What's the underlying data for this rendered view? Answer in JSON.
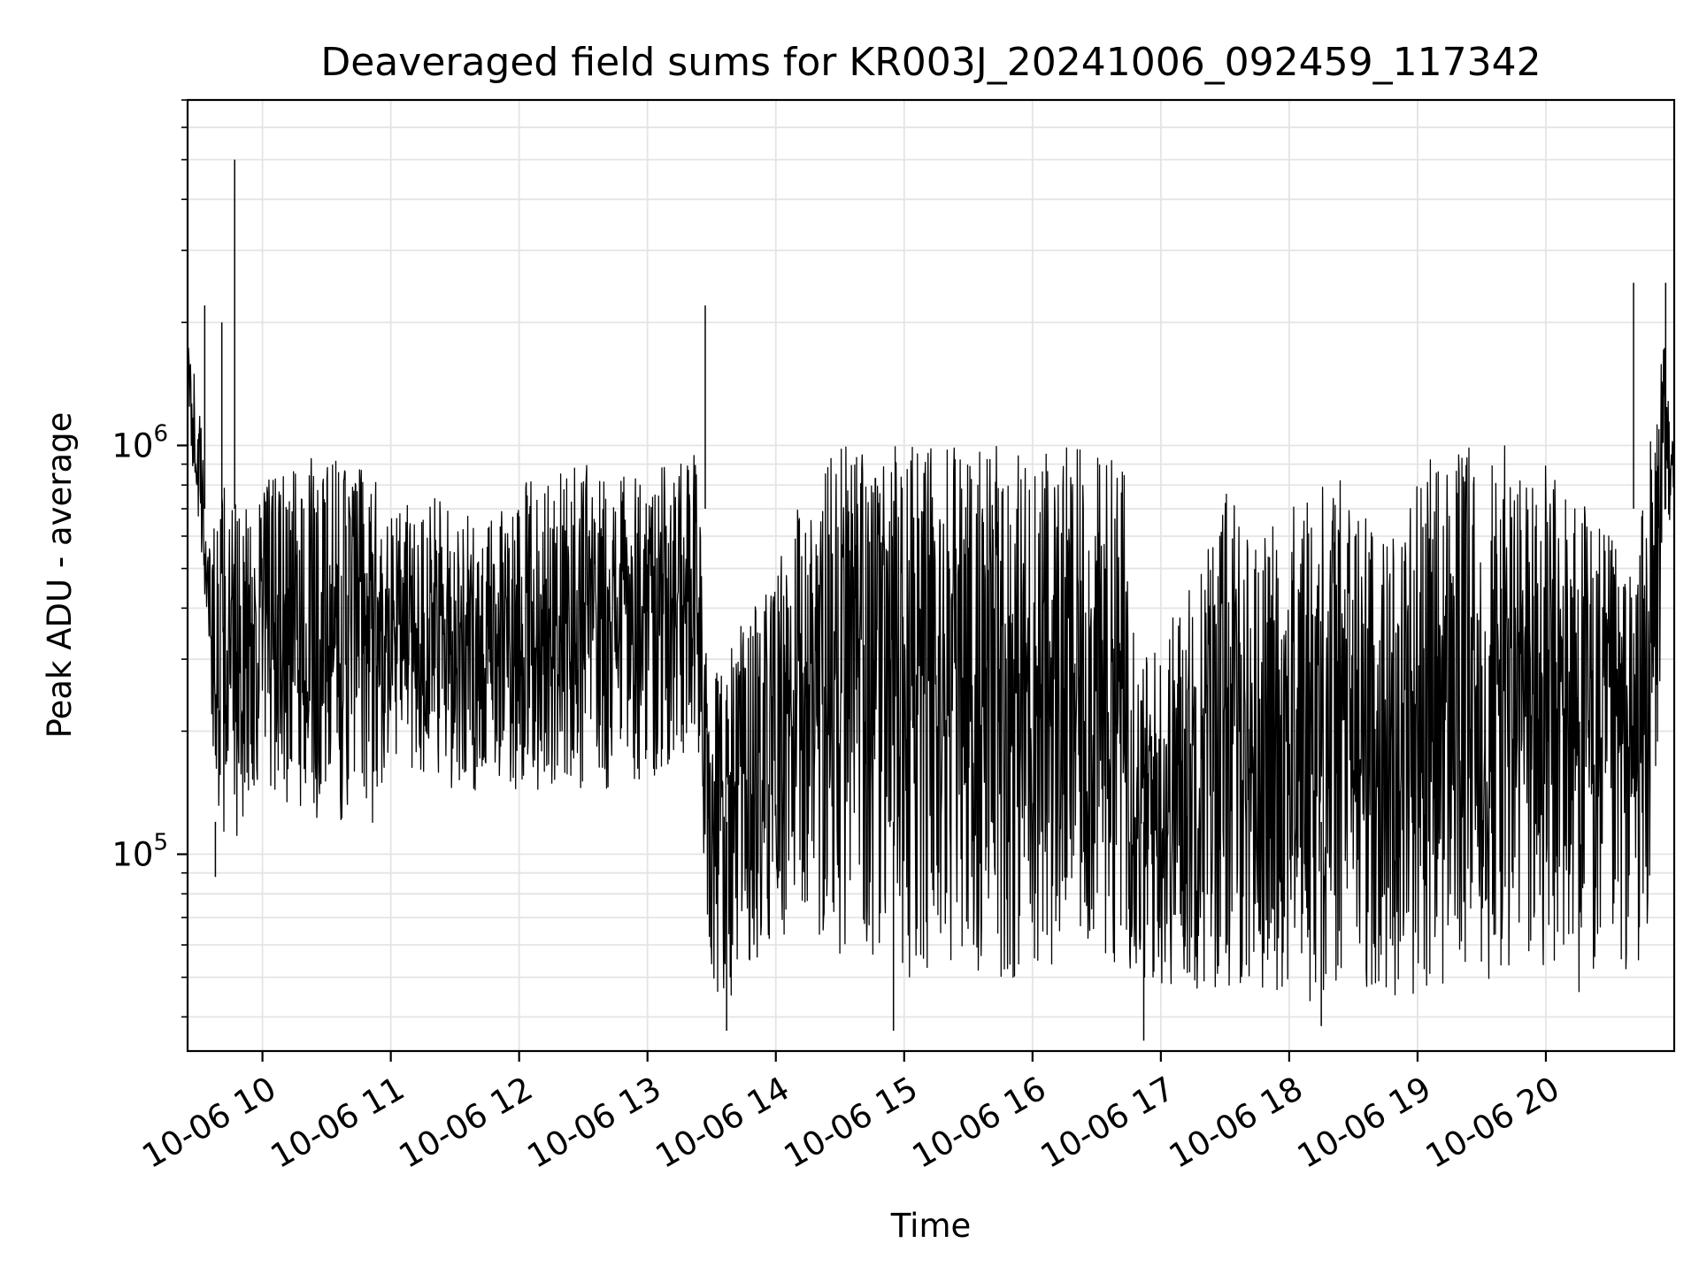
{
  "chart_data": {
    "type": "line",
    "title": "Deaveraged field sums for KR003J_20241006_092459_117342",
    "xlabel": "Time",
    "ylabel": "Peak ADU - average",
    "yscale": "log",
    "ylim": [
      33000,
      7000000
    ],
    "xlim": [
      "2024-10-06 09:25",
      "2024-10-06 21:00"
    ],
    "grid": true,
    "line_color": "#000000",
    "x_ticks": [
      {
        "value": "2024-10-06 10:00",
        "label": "10-06 10"
      },
      {
        "value": "2024-10-06 11:00",
        "label": "10-06 11"
      },
      {
        "value": "2024-10-06 12:00",
        "label": "10-06 12"
      },
      {
        "value": "2024-10-06 13:00",
        "label": "10-06 13"
      },
      {
        "value": "2024-10-06 14:00",
        "label": "10-06 14"
      },
      {
        "value": "2024-10-06 15:00",
        "label": "10-06 15"
      },
      {
        "value": "2024-10-06 16:00",
        "label": "10-06 16"
      },
      {
        "value": "2024-10-06 17:00",
        "label": "10-06 17"
      },
      {
        "value": "2024-10-06 18:00",
        "label": "10-06 18"
      },
      {
        "value": "2024-10-06 19:00",
        "label": "10-06 19"
      },
      {
        "value": "2024-10-06 20:00",
        "label": "10-06 20"
      }
    ],
    "y_ticks": [
      {
        "value": 100000,
        "base": "10",
        "exp": "5"
      },
      {
        "value": 1000000,
        "base": "10",
        "exp": "6"
      }
    ],
    "series": [
      {
        "x": [
          "2024-10-06 09:25",
          "2024-10-06 09:27",
          "2024-10-06 09:29",
          "2024-10-06 09:31",
          "2024-10-06 09:33",
          "2024-10-06 09:35",
          "2024-10-06 09:37",
          "2024-10-06 09:39",
          "2024-10-06 09:40",
          "2024-10-06 09:42",
          "2024-10-06 09:44",
          "2024-10-06 09:46",
          "2024-10-06 09:48",
          "2024-10-06 09:50",
          "2024-10-06 09:55",
          "2024-10-06 10:00",
          "2024-10-06 10:10",
          "2024-10-06 10:15",
          "2024-10-06 10:20",
          "2024-10-06 10:30",
          "2024-10-06 10:40",
          "2024-10-06 10:45",
          "2024-10-06 10:50",
          "2024-10-06 11:00",
          "2024-10-06 11:10",
          "2024-10-06 11:20",
          "2024-10-06 11:30",
          "2024-10-06 11:45",
          "2024-10-06 12:00",
          "2024-10-06 12:15",
          "2024-10-06 12:30",
          "2024-10-06 12:45",
          "2024-10-06 13:00",
          "2024-10-06 13:15",
          "2024-10-06 13:25",
          "2024-10-06 13:26",
          "2024-10-06 13:27",
          "2024-10-06 13:30",
          "2024-10-06 13:35",
          "2024-10-06 13:40",
          "2024-10-06 13:50",
          "2024-10-06 14:00",
          "2024-10-06 14:10",
          "2024-10-06 14:20",
          "2024-10-06 14:25",
          "2024-10-06 14:30",
          "2024-10-06 14:45",
          "2024-10-06 15:00",
          "2024-10-06 15:15",
          "2024-10-06 15:30",
          "2024-10-06 15:45",
          "2024-10-06 16:00",
          "2024-10-06 16:15",
          "2024-10-06 16:30",
          "2024-10-06 16:40",
          "2024-10-06 16:45",
          "2024-10-06 16:50",
          "2024-10-06 17:00",
          "2024-10-06 17:15",
          "2024-10-06 17:30",
          "2024-10-06 17:45",
          "2024-10-06 18:00",
          "2024-10-06 18:15",
          "2024-10-06 18:30",
          "2024-10-06 18:45",
          "2024-10-06 19:00",
          "2024-10-06 19:15",
          "2024-10-06 19:30",
          "2024-10-06 19:45",
          "2024-10-06 20:00",
          "2024-10-06 20:15",
          "2024-10-06 20:30",
          "2024-10-06 20:40",
          "2024-10-06 20:45",
          "2024-10-06 20:50",
          "2024-10-06 20:55",
          "2024-10-06 21:00"
        ],
        "low": [
          1000000,
          900000,
          700000,
          500000,
          400000,
          250000,
          150000,
          100000,
          130000,
          110000,
          120000,
          115000,
          110000,
          120000,
          115000,
          130000,
          125000,
          110000,
          120000,
          115000,
          120000,
          130000,
          110000,
          170000,
          150000,
          145000,
          140000,
          140000,
          145000,
          140000,
          140000,
          145000,
          150000,
          150000,
          150000,
          50000,
          48000,
          47000,
          45000,
          45000,
          50000,
          55000,
          65000,
          60000,
          55000,
          55000,
          52000,
          50000,
          50000,
          48000,
          48000,
          50000,
          52000,
          52000,
          55000,
          50000,
          45000,
          45000,
          45000,
          45000,
          45000,
          45000,
          42000,
          45000,
          45000,
          45000,
          45000,
          45000,
          45000,
          45000,
          45000,
          45000,
          50000,
          55000,
          60000,
          500000,
          800000
        ],
        "high": [
          1800000,
          1700000,
          1400000,
          1200000,
          800000,
          750000,
          700000,
          650000,
          750000,
          800000,
          700000,
          700000,
          750000,
          700000,
          800000,
          900000,
          850000,
          900000,
          950000,
          900000,
          950000,
          1000000,
          900000,
          700000,
          750000,
          750000,
          700000,
          650000,
          800000,
          850000,
          900000,
          850000,
          900000,
          950000,
          950000,
          400000,
          350000,
          300000,
          300000,
          350000,
          400000,
          500000,
          700000,
          900000,
          1000000,
          1000000,
          1000000,
          1000000,
          1000000,
          1000000,
          1000000,
          1000000,
          1000000,
          950000,
          950000,
          900000,
          300000,
          350000,
          500000,
          800000,
          600000,
          700000,
          900000,
          800000,
          600000,
          900000,
          1000000,
          1000000,
          1000000,
          900000,
          800000,
          600000,
          500000,
          700000,
          1200000,
          1800000,
          1200000
        ]
      }
    ],
    "spikes": [
      {
        "x": "2024-10-06 09:47",
        "y": 5000000
      },
      {
        "x": "2024-10-06 13:27",
        "y": 2200000
      },
      {
        "x": "2024-10-06 20:41",
        "y": 2500000
      },
      {
        "x": "2024-10-06 20:56",
        "y": 2500000
      },
      {
        "x": "2024-10-06 09:33",
        "y": 2200000
      },
      {
        "x": "2024-10-06 09:41",
        "y": 2000000
      },
      {
        "x": "2024-10-06 09:38",
        "y": 88000
      },
      {
        "x": "2024-10-06 14:55",
        "y": 37000
      },
      {
        "x": "2024-10-06 13:37",
        "y": 37000
      },
      {
        "x": "2024-10-06 16:52",
        "y": 35000
      },
      {
        "x": "2024-10-06 18:15",
        "y": 38000
      }
    ]
  }
}
